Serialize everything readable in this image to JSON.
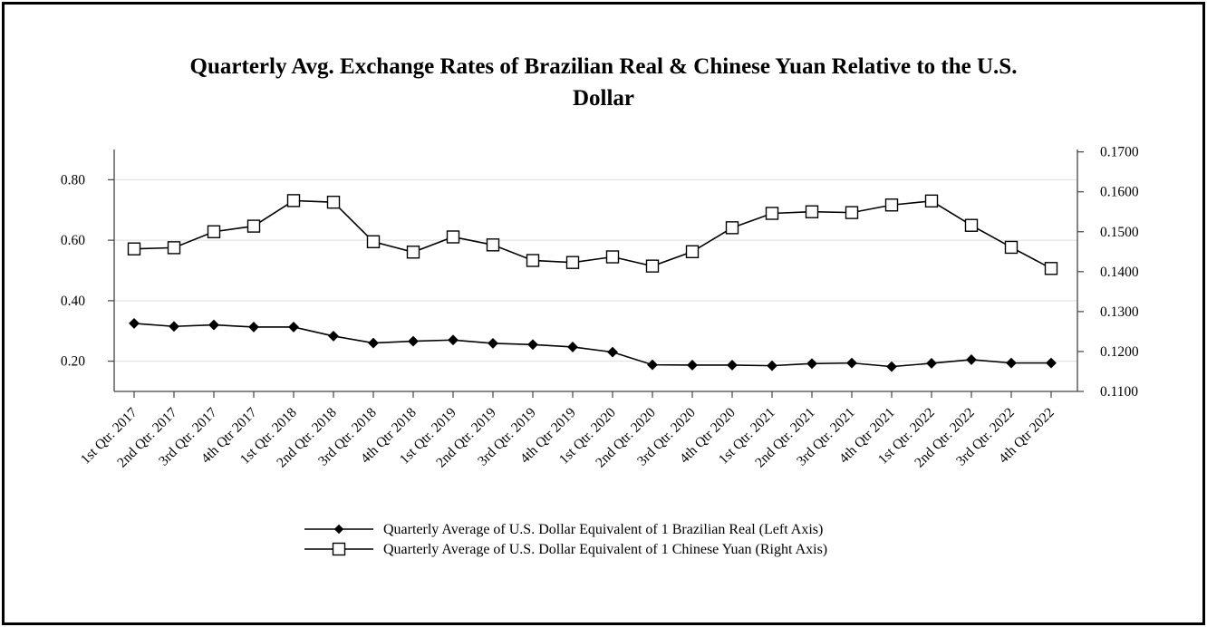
{
  "chart_data": {
    "type": "line",
    "title_line1": "Quarterly Avg. Exchange Rates of Brazilian Real & Chinese Yuan Relative to the U.S.",
    "title_line2": "Dollar",
    "categories": [
      "1st Qtr. 2017",
      "2nd Qtr. 2017",
      "3rd Qtr. 2017",
      "4th Qtr 2017",
      "1st Qtr. 2018",
      "2nd Qtr. 2018",
      "3rd Qtr. 2018",
      "4th Qtr 2018",
      "1st Qtr. 2019",
      "2nd Qtr. 2019",
      "3rd Qtr. 2019",
      "4th Qtr 2019",
      "1st Qtr. 2020",
      "2nd Qtr. 2020",
      "3rd Qtr. 2020",
      "4th Qtr 2020",
      "1st Qtr. 2021",
      "2nd Qtr. 2021",
      "3rd Qtr. 2021",
      "4th Qtr 2021",
      "1st Qtr. 2022",
      "2nd Qtr. 2022",
      "3rd Qtr. 2022",
      "4th Qtr 2022"
    ],
    "left_axis": {
      "ylim": [
        0.1,
        0.9
      ],
      "ticks": [
        "0.20",
        "0.40",
        "0.60",
        "0.80"
      ],
      "tick_values": [
        0.2,
        0.4,
        0.6,
        0.8
      ]
    },
    "right_axis": {
      "ylim": [
        0.11,
        0.1706
      ],
      "ticks": [
        "0.1100",
        "0.1200",
        "0.1300",
        "0.1400",
        "0.1500",
        "0.1600",
        "0.1700"
      ],
      "tick_values": [
        0.11,
        0.12,
        0.13,
        0.14,
        0.15,
        0.16,
        0.17
      ]
    },
    "grid": true,
    "series": [
      {
        "name": "Quarterly Average of U.S. Dollar Equivalent of 1 Brazilian Real (Left Axis)",
        "axis": "left",
        "marker": "filled-diamond",
        "values": [
          0.325,
          0.315,
          0.32,
          0.313,
          0.313,
          0.283,
          0.26,
          0.266,
          0.27,
          0.259,
          0.255,
          0.247,
          0.23,
          0.188,
          0.187,
          0.187,
          0.185,
          0.192,
          0.194,
          0.182,
          0.193,
          0.205,
          0.194,
          0.194
        ]
      },
      {
        "name": "Quarterly Average of U.S. Dollar Equivalent of 1 Chinese Yuan (Right Axis)",
        "axis": "right",
        "marker": "open-square",
        "values": [
          0.1457,
          0.146,
          0.15,
          0.1514,
          0.1578,
          0.1574,
          0.1475,
          0.1449,
          0.1487,
          0.1467,
          0.1428,
          0.1423,
          0.1437,
          0.1414,
          0.145,
          0.151,
          0.1546,
          0.155,
          0.1548,
          0.1567,
          0.1577,
          0.1516,
          0.1461,
          0.1408
        ]
      }
    ],
    "legend_placement": "bottom-center"
  }
}
